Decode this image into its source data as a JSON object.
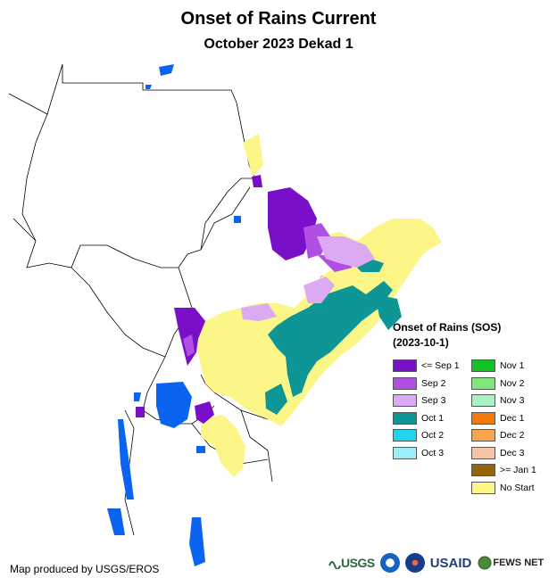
{
  "map": {
    "title": "Onset of Rains Current",
    "subtitle": "October 2023 Dekad 1",
    "credit": "Map produced by USGS/EROS"
  },
  "legend": {
    "title": "Onset of Rains (SOS)",
    "date": "(2023-10-1)",
    "items": [
      {
        "label": "<= Sep 1",
        "color": "#7a0fc9"
      },
      {
        "label": "Sep 2",
        "color": "#b24fe3"
      },
      {
        "label": "Sep 3",
        "color": "#dcaaf2"
      },
      {
        "label": "Oct 1",
        "color": "#0e9696"
      },
      {
        "label": "Oct 2",
        "color": "#23d2ec"
      },
      {
        "label": "Oct 3",
        "color": "#9af0f8"
      },
      {
        "label": "Nov 1",
        "color": "#11c324"
      },
      {
        "label": "Nov 2",
        "color": "#7fe67a"
      },
      {
        "label": "Nov 3",
        "color": "#a9f0c3"
      },
      {
        "label": "Dec 1",
        "color": "#f17a0b"
      },
      {
        "label": "Dec 2",
        "color": "#f8a54e"
      },
      {
        "label": "Dec 3",
        "color": "#f8c3a9"
      },
      {
        "label": ">= Jan 1",
        "color": "#966409"
      },
      {
        "label": "No Start",
        "color": "#fbf687"
      }
    ]
  },
  "logos": {
    "usgs": "USGS",
    "usaid": "USAID",
    "fews": "FEWS NET"
  },
  "colors": {
    "water": "#0a64f0",
    "border": "#000000"
  }
}
